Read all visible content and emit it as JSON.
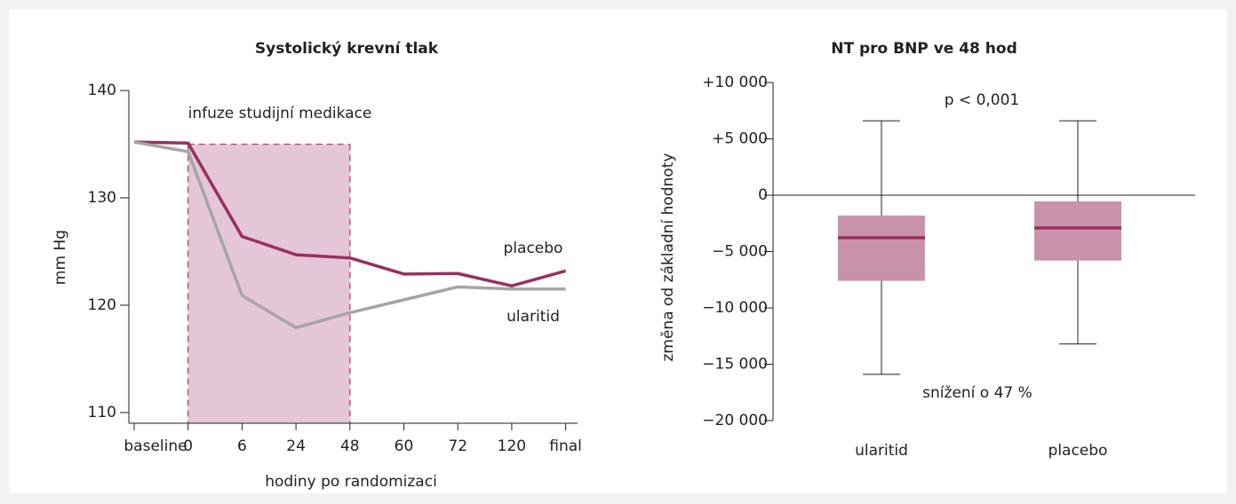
{
  "chart_data": [
    {
      "type": "line",
      "title": "Systolický krevní tlak",
      "xlabel": "hodiny po randomizaci",
      "ylabel": "mm Hg",
      "categories": [
        "baseline",
        "0",
        "6",
        "24",
        "48",
        "60",
        "72",
        "120",
        "final"
      ],
      "series": [
        {
          "name": "placebo",
          "color": "#98305f",
          "values": [
            135.2,
            135.1,
            126.4,
            124.7,
            124.4,
            122.9,
            122.95,
            121.8,
            123.2
          ]
        },
        {
          "name": "ularitid",
          "color": "#a5a5a5",
          "values": [
            135.2,
            134.3,
            120.9,
            117.9,
            119.3,
            120.5,
            121.7,
            121.5,
            121.5
          ]
        }
      ],
      "shade": {
        "from": "0",
        "to": "48",
        "top": 135,
        "color": "#e4c6d6",
        "label": "infuze studijní medikace"
      },
      "ylim": [
        109,
        140
      ],
      "yticks": [
        110,
        120,
        130,
        140
      ]
    },
    {
      "type": "box",
      "title": "NT pro BNP ve 48 hod",
      "ylabel": "změna od základní hodnoty",
      "categories": [
        "ularitid",
        "placebo"
      ],
      "color": "#c992ab",
      "median_color": "#9b2f5f",
      "whisker_high": [
        6600,
        6600
      ],
      "q3": [
        -1800,
        -550
      ],
      "median": [
        -3770,
        -2900
      ],
      "q1": [
        -7600,
        -5800
      ],
      "whisker_low": [
        -15900,
        -13200
      ],
      "annotations": [
        "p < 0,001",
        "snížení o 47 %"
      ],
      "ylim": [
        -20000,
        10000
      ],
      "yticks": [
        {
          "value": 10000,
          "label": "+10 000"
        },
        {
          "value": 5000,
          "label": "+5 000"
        },
        0,
        {
          "value": -5000,
          "label": "−5 000"
        },
        {
          "value": -10000,
          "label": "−10 000"
        },
        {
          "value": -15000,
          "label": "−15 000"
        },
        {
          "value": -20000,
          "label": "−20 000"
        }
      ]
    }
  ]
}
